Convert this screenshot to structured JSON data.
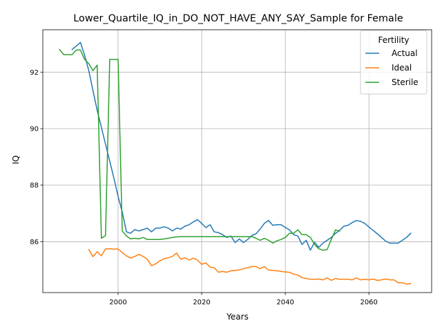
{
  "chart_data": {
    "type": "line",
    "title": "Lower_Quartile_IQ_in_DO_NOT_HAVE_ANY_SAY_Sample for Female",
    "xlabel": "Years",
    "ylabel": "IQ",
    "xlim": [
      1982,
      2075
    ],
    "ylim": [
      84.2,
      93.5
    ],
    "xticks": [
      2000,
      2020,
      2040,
      2060
    ],
    "yticks": [
      86,
      88,
      90,
      92
    ],
    "grid": true,
    "legend": {
      "title": "Fertility",
      "position": "top-right"
    },
    "series": [
      {
        "name": "Actual",
        "color": "#1f77b4",
        "x": [
          1989,
          1990,
          1991,
          1992,
          1993,
          1994,
          1995,
          1996,
          1997,
          1998,
          1999,
          2000,
          2001,
          2002,
          2003,
          2004,
          2005,
          2006,
          2007,
          2008,
          2009,
          2010,
          2011,
          2012,
          2013,
          2014,
          2015,
          2016,
          2017,
          2018,
          2019,
          2020,
          2021,
          2022,
          2023,
          2024,
          2025,
          2026,
          2027,
          2028,
          2029,
          2030,
          2031,
          2032,
          2033,
          2034,
          2035,
          2036,
          2037,
          2038,
          2039,
          2040,
          2041,
          2042,
          2043,
          2044,
          2045,
          2046,
          2047,
          2048,
          2049,
          2050,
          2051,
          2052,
          2053,
          2054,
          2055,
          2056,
          2057,
          2058,
          2059,
          2060,
          2061,
          2062,
          2063,
          2064,
          2065,
          2066,
          2067,
          2068,
          2069,
          2070
        ],
        "y": [
          92.8,
          92.92,
          93.05,
          92.6,
          92.05,
          91.35,
          90.65,
          90.05,
          89.45,
          88.85,
          88.25,
          87.6,
          87.05,
          86.35,
          86.3,
          86.43,
          86.38,
          86.43,
          86.48,
          86.35,
          86.48,
          86.48,
          86.53,
          86.48,
          86.38,
          86.48,
          86.45,
          86.55,
          86.6,
          86.7,
          86.78,
          86.65,
          86.5,
          86.6,
          86.35,
          86.32,
          86.25,
          86.15,
          86.2,
          85.97,
          86.1,
          85.97,
          86.08,
          86.22,
          86.28,
          86.45,
          86.65,
          86.75,
          86.58,
          86.6,
          86.6,
          86.5,
          86.42,
          86.25,
          86.2,
          85.9,
          86.05,
          85.7,
          85.98,
          85.8,
          85.95,
          86.05,
          86.15,
          86.3,
          86.4,
          86.55,
          86.58,
          86.68,
          86.75,
          86.72,
          86.65,
          86.52,
          86.4,
          86.28,
          86.15,
          86.02,
          85.95,
          85.95,
          85.95,
          86.05,
          86.15,
          86.3
        ]
      },
      {
        "name": "Ideal",
        "color": "#ff7f0e",
        "x": [
          1993,
          1994,
          1995,
          1996,
          1997,
          1998,
          1999,
          2000,
          2001,
          2002,
          2003,
          2004,
          2005,
          2006,
          2007,
          2008,
          2009,
          2010,
          2011,
          2012,
          2013,
          2014,
          2015,
          2016,
          2017,
          2018,
          2019,
          2020,
          2021,
          2022,
          2023,
          2024,
          2025,
          2026,
          2027,
          2028,
          2029,
          2030,
          2031,
          2032,
          2033,
          2034,
          2035,
          2036,
          2037,
          2038,
          2039,
          2040,
          2041,
          2042,
          2043,
          2044,
          2045,
          2046,
          2047,
          2048,
          2049,
          2050,
          2051,
          2052,
          2053,
          2054,
          2055,
          2056,
          2057,
          2058,
          2059,
          2060,
          2061,
          2062,
          2063,
          2064,
          2065,
          2066,
          2067,
          2068,
          2069,
          2070
        ],
        "y": [
          85.72,
          85.47,
          85.65,
          85.5,
          85.75,
          85.75,
          85.74,
          85.74,
          85.62,
          85.5,
          85.42,
          85.48,
          85.55,
          85.48,
          85.38,
          85.15,
          85.22,
          85.32,
          85.4,
          85.43,
          85.48,
          85.6,
          85.38,
          85.43,
          85.35,
          85.42,
          85.35,
          85.2,
          85.25,
          85.1,
          85.08,
          84.92,
          84.95,
          84.92,
          84.97,
          84.98,
          85.0,
          85.05,
          85.08,
          85.12,
          85.12,
          85.05,
          85.12,
          85.0,
          84.98,
          84.97,
          84.95,
          84.93,
          84.92,
          84.85,
          84.82,
          84.73,
          84.7,
          84.67,
          84.67,
          84.68,
          84.65,
          84.72,
          84.63,
          84.7,
          84.67,
          84.67,
          84.67,
          84.65,
          84.72,
          84.65,
          84.67,
          84.65,
          84.68,
          84.63,
          84.65,
          84.68,
          84.65,
          84.65,
          84.55,
          84.55,
          84.5,
          84.52
        ]
      },
      {
        "name": "Sterile",
        "color": "#2ca02c",
        "x": [
          1986,
          1987,
          1988,
          1989,
          1990,
          1991,
          1992,
          1993,
          1994,
          1995,
          1996,
          1997,
          1998,
          1999,
          2000,
          2001,
          2002,
          2003,
          2004,
          2005,
          2006,
          2007,
          2008,
          2009,
          2010,
          2011,
          2012,
          2013,
          2014,
          2015,
          2016,
          2017,
          2018,
          2019,
          2020,
          2021,
          2022,
          2023,
          2024,
          2025,
          2026,
          2027,
          2028,
          2029,
          2030,
          2031,
          2032,
          2033,
          2034,
          2035,
          2036,
          2037,
          2038,
          2039,
          2040,
          2041,
          2042,
          2043,
          2044,
          2045,
          2046,
          2047,
          2048,
          2049,
          2050,
          2051,
          2052,
          2053
        ],
        "y": [
          92.8,
          92.62,
          92.62,
          92.62,
          92.78,
          92.78,
          92.45,
          92.3,
          92.05,
          92.25,
          86.12,
          86.22,
          92.45,
          92.45,
          92.45,
          86.38,
          86.2,
          86.1,
          86.12,
          86.1,
          86.15,
          86.08,
          86.08,
          86.08,
          86.08,
          86.1,
          86.12,
          86.15,
          86.17,
          86.18,
          86.18,
          86.18,
          86.18,
          86.18,
          86.18,
          86.18,
          86.18,
          86.18,
          86.18,
          86.18,
          86.18,
          86.18,
          86.18,
          86.18,
          86.18,
          86.18,
          86.18,
          86.12,
          86.05,
          86.12,
          86.05,
          85.95,
          86.03,
          86.08,
          86.15,
          86.3,
          86.3,
          86.42,
          86.25,
          86.25,
          86.15,
          85.9,
          85.75,
          85.7,
          85.72,
          86.08,
          86.42,
          86.38
        ]
      }
    ]
  }
}
